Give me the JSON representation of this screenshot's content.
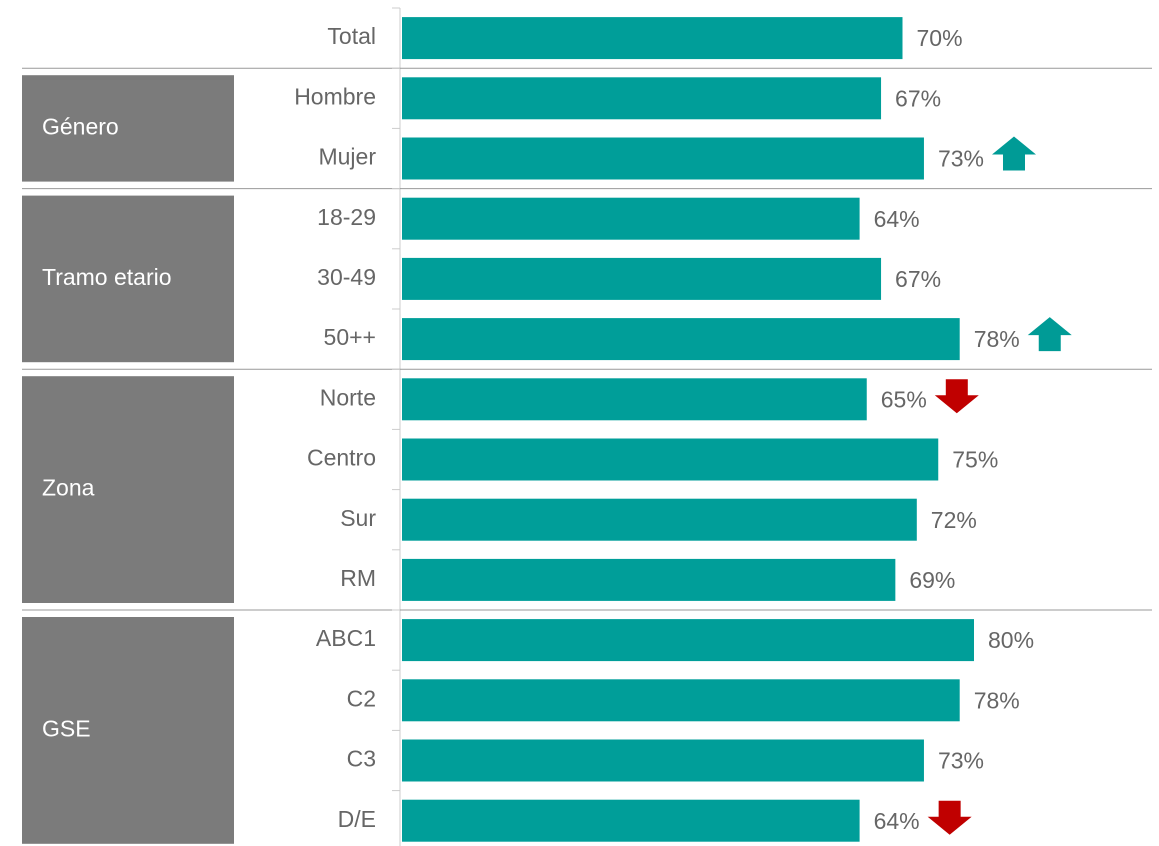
{
  "chart_data": {
    "type": "bar",
    "orientation": "horizontal",
    "categories": [
      "Total",
      "Hombre",
      "Mujer",
      "18-29",
      "30-49",
      "50++",
      "Norte",
      "Centro",
      "Sur",
      "RM",
      "ABC1",
      "C2",
      "C3",
      "D/E"
    ],
    "category_groups": [
      null,
      "Género",
      "Género",
      "Tramo etario",
      "Tramo etario",
      "Tramo etario",
      "Zona",
      "Zona",
      "Zona",
      "Zona",
      "GSE",
      "GSE",
      "GSE",
      "GSE"
    ],
    "values": [
      70,
      67,
      73,
      64,
      67,
      78,
      65,
      75,
      72,
      69,
      80,
      78,
      73,
      64
    ],
    "value_labels": [
      "70%",
      "67%",
      "73%",
      "64%",
      "67%",
      "78%",
      "65%",
      "75%",
      "72%",
      "69%",
      "80%",
      "78%",
      "73%",
      "64%"
    ],
    "arrows": [
      null,
      null,
      "up",
      null,
      null,
      "up",
      "down",
      null,
      null,
      null,
      null,
      null,
      null,
      "down"
    ],
    "arrow_colors": {
      "up": "#009b96",
      "down": "#c00000"
    },
    "color": "#009e99",
    "group_color": "#7b7b7b",
    "xlim": [
      0,
      100
    ]
  }
}
